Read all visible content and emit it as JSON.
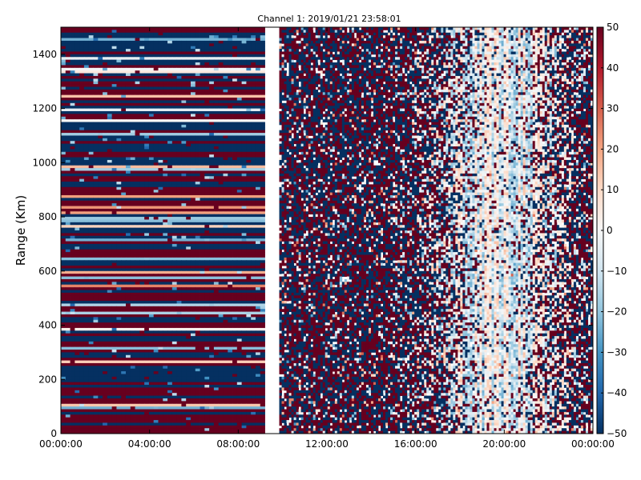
{
  "chart_data": {
    "type": "heatmap",
    "title": "Channel 1: 2019/01/21 23:58:01",
    "xlabel": "",
    "ylabel": "Range (Km)",
    "x_ticks": [
      "00:00:00",
      "04:00:00",
      "08:00:00",
      "12:00:00",
      "16:00:00",
      "20:00:00",
      "00:00:00"
    ],
    "x_tick_hours": [
      0,
      4,
      8,
      12,
      16,
      20,
      24
    ],
    "xlim_hours": [
      0,
      24
    ],
    "y_ticks": [
      0,
      200,
      400,
      600,
      800,
      1000,
      1200,
      1400
    ],
    "ylim": [
      0,
      1500
    ],
    "colorbar": {
      "ticks": [
        -50,
        -40,
        -30,
        -20,
        -10,
        0,
        10,
        20,
        30,
        40,
        50
      ],
      "tick_labels": [
        "−50",
        "−40",
        "−30",
        "−20",
        "−10",
        "0",
        "10",
        "20",
        "30",
        "40",
        "50"
      ],
      "range": [
        -50,
        50
      ],
      "colormap": "RdBu_r",
      "stops": [
        "#053061",
        "#2166ac",
        "#4393c3",
        "#92c5de",
        "#d1e5f0",
        "#f7f7f7",
        "#fddbc7",
        "#f4a582",
        "#d6604d",
        "#b2182b",
        "#67001f"
      ]
    },
    "data_gap_hours": [
      9.2,
      9.85
    ],
    "grid": false
  }
}
